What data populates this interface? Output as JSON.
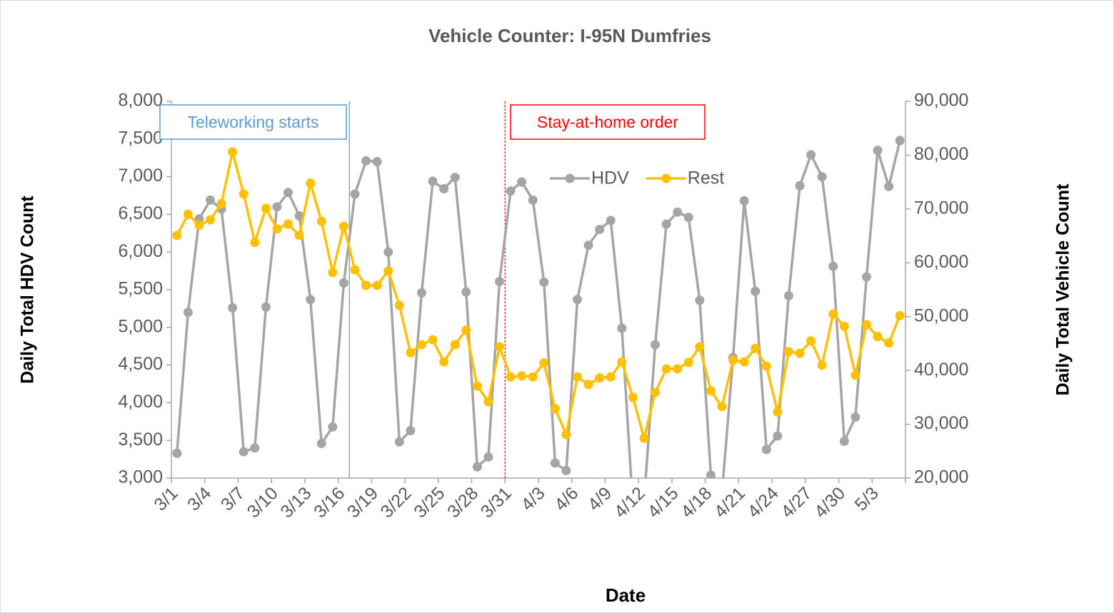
{
  "chart_data": {
    "type": "line",
    "title": "Vehicle Counter: I-95N Dumfries",
    "x_label": "Date",
    "y_label": "Daily Total HDV Count",
    "y2_label": "Daily Total Vehicle Count",
    "categories": [
      "3/1",
      null,
      null,
      "3/4",
      null,
      null,
      "3/7",
      null,
      null,
      "3/10",
      null,
      null,
      "3/13",
      null,
      null,
      "3/16",
      null,
      null,
      "3/19",
      null,
      null,
      "3/22",
      null,
      null,
      "3/25",
      null,
      null,
      "3/28",
      null,
      null,
      "3/31",
      null,
      null,
      "4/3",
      null,
      null,
      "4/6",
      null,
      null,
      "4/9",
      null,
      null,
      "4/12",
      null,
      null,
      "4/15",
      null,
      null,
      "4/18",
      null,
      null,
      "4/21",
      null,
      null,
      "4/24",
      null,
      null,
      "4/27",
      null,
      null,
      "4/30",
      null,
      null,
      "5/3",
      null,
      null
    ],
    "series": [
      {
        "name": "HDV",
        "color": "#a5a5a5",
        "values": [
          3330,
          5200,
          6440,
          6690,
          6570,
          5260,
          3350,
          3400,
          5270,
          6600,
          6790,
          6480,
          5370,
          3460,
          3680,
          5590,
          6770,
          7210,
          7200,
          6000,
          3480,
          3630,
          5460,
          6940,
          6840,
          6990,
          5470,
          3150,
          3280,
          5610,
          6810,
          6930,
          6690,
          5600,
          3200,
          3100,
          5370,
          6090,
          6300,
          6420,
          4990,
          2600,
          2700,
          4770,
          6370,
          6530,
          6460,
          5360,
          3040,
          2800,
          4600,
          6680,
          5480,
          3380,
          3560,
          5420,
          6880,
          7290,
          7000,
          5810,
          3490,
          3810,
          5670,
          7350,
          6870,
          7480
        ]
      },
      {
        "name": "Rest",
        "color": "#ffc000",
        "axis": "y2",
        "values": [
          65100,
          69000,
          67000,
          68000,
          71000,
          80600,
          72800,
          63800,
          70100,
          66300,
          67200,
          65100,
          74800,
          67700,
          58200,
          66800,
          58700,
          55800,
          55800,
          58500,
          52100,
          43300,
          44800,
          45700,
          41600,
          44800,
          47500,
          37100,
          34200,
          44400,
          38800,
          39000,
          38800,
          41400,
          32900,
          28100,
          38800,
          37400,
          38600,
          38800,
          41600,
          35000,
          27400,
          35900,
          40300,
          40300,
          41500,
          44400,
          36200,
          33300,
          41900,
          41600,
          44100,
          40800,
          32300,
          43500,
          43200,
          45500,
          41000,
          50500,
          48200,
          39100,
          48500,
          46300,
          45100,
          50200
        ]
      }
    ],
    "ylim": [
      3000,
      8000
    ],
    "yticks": [
      {
        "value": 3000,
        "label": "3,000"
      },
      {
        "value": 3500,
        "label": "3,500"
      },
      {
        "value": 4000,
        "label": "4,000"
      },
      {
        "value": 4500,
        "label": "4,500"
      },
      {
        "value": 5000,
        "label": "5,000"
      },
      {
        "value": 5500,
        "label": "5,500"
      },
      {
        "value": 6000,
        "label": "6,000"
      },
      {
        "value": 6500,
        "label": "6,500"
      },
      {
        "value": 7000,
        "label": "7,000"
      },
      {
        "value": 7500,
        "label": "7,500"
      },
      {
        "value": 8000,
        "label": "8,000"
      }
    ],
    "y2lim": [
      20000,
      90000
    ],
    "y2ticks": [
      {
        "value": 20000,
        "label": "20,000"
      },
      {
        "value": 30000,
        "label": "30,000"
      },
      {
        "value": 40000,
        "label": "40,000"
      },
      {
        "value": 50000,
        "label": "50,000"
      },
      {
        "value": 60000,
        "label": "60,000"
      },
      {
        "value": 70000,
        "label": "70,000"
      },
      {
        "value": 80000,
        "label": "80,000"
      },
      {
        "value": 90000,
        "label": "90,000"
      }
    ],
    "grid": false,
    "legend": "upper center",
    "annotations": [
      {
        "text": "Teleworking starts",
        "color": "#5b9bd5"
      },
      {
        "text": "Stay-at-home order",
        "color": "#ff0000"
      }
    ]
  }
}
